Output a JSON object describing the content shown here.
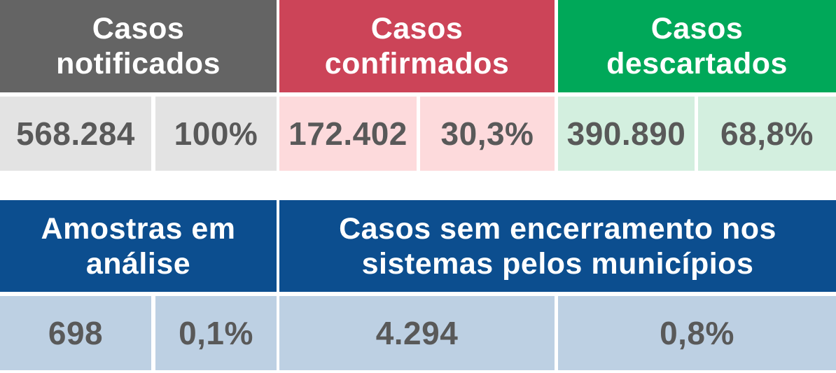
{
  "top_row": {
    "notificados": {
      "title_line1": "Casos",
      "title_line2": "notificados",
      "count": "568.284",
      "percent": "100%"
    },
    "confirmados": {
      "title_line1": "Casos",
      "title_line2": "confirmados",
      "count": "172.402",
      "percent": "30,3%"
    },
    "descartados": {
      "title_line1": "Casos",
      "title_line2": "descartados",
      "count": "390.890",
      "percent": "68,8%"
    }
  },
  "bottom_row": {
    "amostras": {
      "title_line1": "Amostras em",
      "title_line2": "análise",
      "count": "698",
      "percent": "0,1%"
    },
    "sem_encerramento": {
      "title_line1": "Casos sem encerramento nos",
      "title_line2": "sistemas pelos municípios",
      "count": "4.294",
      "percent": "0,8%"
    }
  },
  "colors": {
    "gray_header": "#646464",
    "red_header": "#cc4458",
    "green_header": "#00a859",
    "blue_header": "#0c4e8f",
    "gray_value": "#e3e3e3",
    "red_value": "#fddadc",
    "green_value": "#d3efdf",
    "blue_value": "#bdd0e3",
    "value_text": "#595959"
  }
}
